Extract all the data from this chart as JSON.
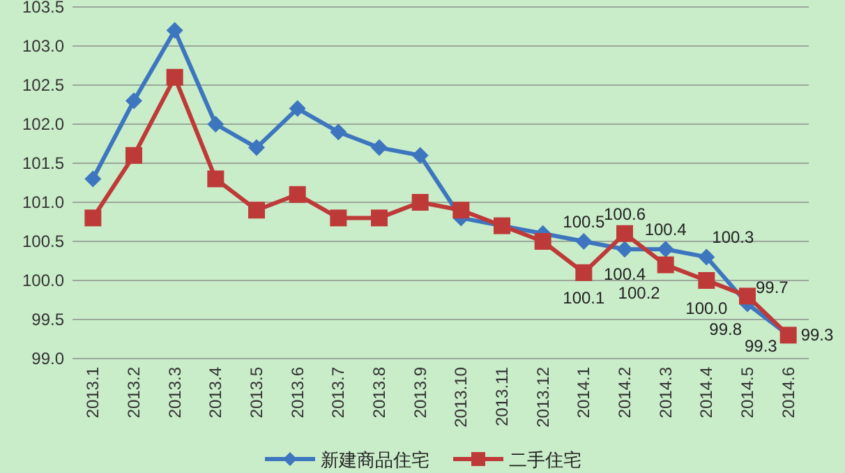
{
  "chart_data": {
    "type": "line",
    "categories": [
      "2013.1",
      "2013.2",
      "2013.3",
      "2013.4",
      "2013.5",
      "2013.6",
      "2013.7",
      "2013.8",
      "2013.9",
      "2013.10",
      "2013.11",
      "2013.12",
      "2014.1",
      "2014.2",
      "2014.3",
      "2014.4",
      "2014.5",
      "2014.6"
    ],
    "series": [
      {
        "name": "新建商品住宅",
        "color": "#3d76bf",
        "marker": "diamond",
        "values": [
          101.3,
          102.3,
          103.2,
          102.0,
          101.7,
          102.2,
          101.9,
          101.7,
          101.6,
          100.8,
          100.7,
          100.6,
          100.5,
          100.4,
          100.4,
          100.3,
          99.7,
          99.3
        ],
        "value_labels": [
          null,
          null,
          null,
          null,
          null,
          null,
          null,
          null,
          null,
          null,
          null,
          null,
          "100.5",
          "100.4",
          "100.4",
          "100.3",
          "99.7",
          "99.3"
        ]
      },
      {
        "name": "二手住宅",
        "color": "#be3a38",
        "marker": "square",
        "values": [
          100.8,
          101.6,
          102.6,
          101.3,
          100.9,
          101.1,
          100.8,
          100.8,
          101.0,
          100.9,
          100.7,
          100.5,
          100.1,
          100.6,
          100.2,
          100.0,
          99.8,
          99.3
        ],
        "value_labels": [
          null,
          null,
          null,
          null,
          null,
          null,
          null,
          null,
          null,
          null,
          null,
          null,
          "100.1",
          "100.6",
          "100.2",
          "100.0",
          "99.8",
          "99.3"
        ]
      }
    ],
    "ylim": [
      99.0,
      103.5
    ],
    "yticks": [
      {
        "value": 99.0,
        "label": "99.0"
      },
      {
        "value": 99.5,
        "label": "99.5"
      },
      {
        "value": 100.0,
        "label": "100.0"
      },
      {
        "value": 100.5,
        "label": "100.5"
      },
      {
        "value": 101.0,
        "label": "101.0"
      },
      {
        "value": 101.5,
        "label": "101.5"
      },
      {
        "value": 102.0,
        "label": "102.0"
      },
      {
        "value": 102.5,
        "label": "102.5"
      },
      {
        "value": 103.0,
        "label": "103.0"
      },
      {
        "value": 103.5,
        "label": "103.5"
      }
    ],
    "grid": "y",
    "legend": "bottom",
    "line_style": "solid"
  }
}
